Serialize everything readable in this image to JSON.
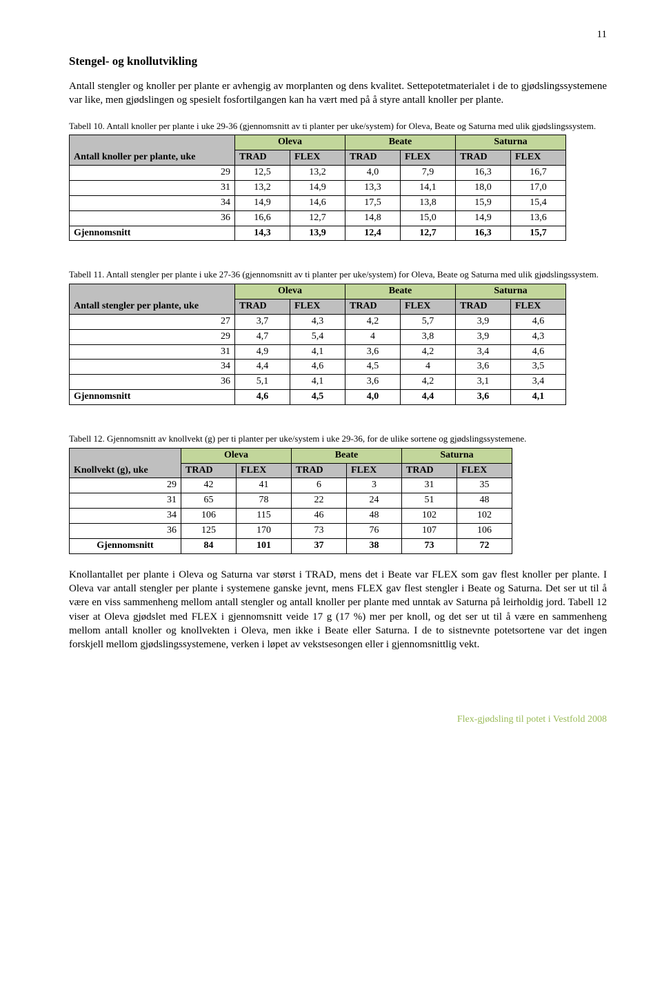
{
  "page_number": "11",
  "heading": "Stengel- og knollutvikling",
  "intro_p1": "Antall stengler og knoller per plante er avhengig av morplanten og dens kvalitet. Settepotetmaterialet i de to gjødslingssystemene var like, men gjødslingen og spesielt fosfortilgangen kan ha vært med på å styre antall knoller per plante.",
  "table10": {
    "caption": "Tabell 10. Antall knoller per plante i uke 29-36 (gjennomsnitt av ti planter per uke/system) for Oleva, Beate og Saturna med ulik gjødslingssystem.",
    "row_label": "Antall knoller per plante, uke",
    "groups": [
      "Oleva",
      "Beate",
      "Saturna"
    ],
    "subheads": [
      "TRAD",
      "FLEX",
      "TRAD",
      "FLEX",
      "TRAD",
      "FLEX"
    ],
    "rows": [
      {
        "k": "29",
        "v": [
          "12,5",
          "13,2",
          "4,0",
          "7,9",
          "16,3",
          "16,7"
        ]
      },
      {
        "k": "31",
        "v": [
          "13,2",
          "14,9",
          "13,3",
          "14,1",
          "18,0",
          "17,0"
        ]
      },
      {
        "k": "34",
        "v": [
          "14,9",
          "14,6",
          "17,5",
          "13,8",
          "15,9",
          "15,4"
        ]
      },
      {
        "k": "36",
        "v": [
          "16,6",
          "12,7",
          "14,8",
          "15,0",
          "14,9",
          "13,6"
        ]
      }
    ],
    "sum": {
      "k": "Gjennomsnitt",
      "v": [
        "14,3",
        "13,9",
        "12,4",
        "12,7",
        "16,3",
        "15,7"
      ]
    }
  },
  "table11": {
    "caption": "Tabell 11. Antall stengler per plante i uke 27-36 (gjennomsnitt av ti planter per uke/system) for Oleva, Beate og Saturna med ulik gjødslingssystem.",
    "row_label": "Antall stengler per plante, uke",
    "groups": [
      "Oleva",
      "Beate",
      "Saturna"
    ],
    "subheads": [
      "TRAD",
      "FLEX",
      "TRAD",
      "FLEX",
      "TRAD",
      "FLEX"
    ],
    "rows": [
      {
        "k": "27",
        "v": [
          "3,7",
          "4,3",
          "4,2",
          "5,7",
          "3,9",
          "4,6"
        ]
      },
      {
        "k": "29",
        "v": [
          "4,7",
          "5,4",
          "4",
          "3,8",
          "3,9",
          "4,3"
        ]
      },
      {
        "k": "31",
        "v": [
          "4,9",
          "4,1",
          "3,6",
          "4,2",
          "3,4",
          "4,6"
        ]
      },
      {
        "k": "34",
        "v": [
          "4,4",
          "4,6",
          "4,5",
          "4",
          "3,6",
          "3,5"
        ]
      },
      {
        "k": "36",
        "v": [
          "5,1",
          "4,1",
          "3,6",
          "4,2",
          "3,1",
          "3,4"
        ]
      }
    ],
    "sum": {
      "k": "Gjennomsnitt",
      "v": [
        "4,6",
        "4,5",
        "4,0",
        "4,4",
        "3,6",
        "4,1"
      ]
    }
  },
  "table12": {
    "caption": "Tabell 12. Gjennomsnitt av knollvekt (g) per ti planter per uke/system i uke 29-36, for de ulike sortene og gjødslingssystemene.",
    "row_label": "Knollvekt (g), uke",
    "groups": [
      "Oleva",
      "Beate",
      "Saturna"
    ],
    "subheads": [
      "TRAD",
      "FLEX",
      "TRAD",
      "FLEX",
      "TRAD",
      "FLEX"
    ],
    "rows": [
      {
        "k": "29",
        "v": [
          "42",
          "41",
          "6",
          "3",
          "31",
          "35"
        ]
      },
      {
        "k": "31",
        "v": [
          "65",
          "78",
          "22",
          "24",
          "51",
          "48"
        ]
      },
      {
        "k": "34",
        "v": [
          "106",
          "115",
          "46",
          "48",
          "102",
          "102"
        ]
      },
      {
        "k": "36",
        "v": [
          "125",
          "170",
          "73",
          "76",
          "107",
          "106"
        ]
      }
    ],
    "sum": {
      "k": "Gjennomsnitt",
      "v": [
        "84",
        "101",
        "37",
        "38",
        "73",
        "72"
      ]
    }
  },
  "lower_para": "Knollantallet per plante i Oleva og Saturna var størst i TRAD, mens det i Beate var FLEX som gav flest knoller per plante. I Oleva var antall stengler per plante i systemene ganske jevnt, mens FLEX gav flest stengler i Beate og Saturna. Det ser ut til å være en viss sammenheng mellom antall stengler og antall knoller per plante med unntak av Saturna på leirholdig jord. Tabell 12 viser at Oleva gjødslet med FLEX i gjennomsnitt veide 17 g (17 %) mer per knoll, og det ser ut til å være en sammenheng mellom antall knoller og knollvekten i Oleva, men ikke i Beate eller Saturna. I de to sistnevnte potetsortene var det ingen forskjell mellom gjødslingssystemene, verken i løpet av vekstsesongen eller i gjennomsnittlig vekt.",
  "footer": "Flex-gjødsling til potet i Vestfold 2008"
}
